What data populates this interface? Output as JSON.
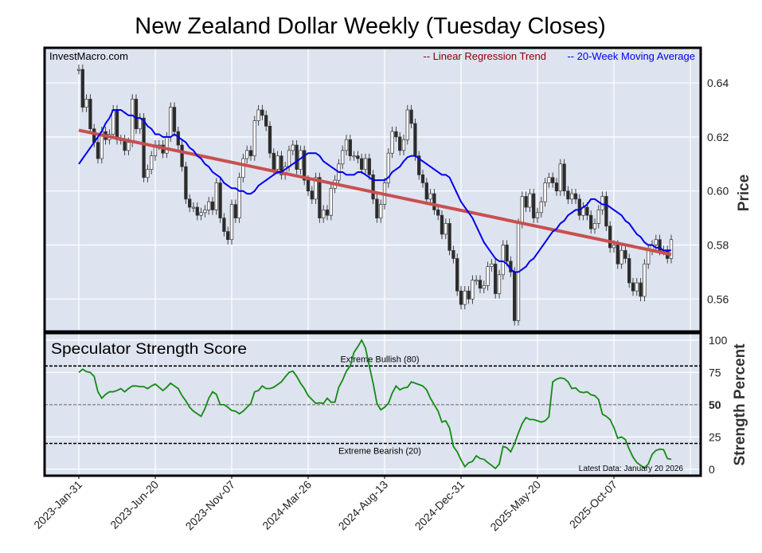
{
  "chart_data": [
    {
      "type": "candlestick",
      "title": "New Zealand Dollar Weekly (Tuesday Closes)",
      "watermark": "InvestMacro.com",
      "ylabel": "Price",
      "ylim": [
        0.548,
        0.653
      ],
      "yticks": [
        "0.56",
        "0.58",
        "0.60",
        "0.62",
        "0.64"
      ],
      "x_start": "2023-Jan-31",
      "x_step": "weekly (Tuesday)",
      "xticks": [
        "2023-Jan-31",
        "2023-Jun-20",
        "2023-Nov-07",
        "2024-Mar-26",
        "2024-Aug-13",
        "2024-Dec-31",
        "2025-May-20",
        "2025-Oct-07"
      ],
      "grid": true,
      "legend_position": "top-right",
      "legend": [
        {
          "label": "-- Linear Regression Trend",
          "color": "#8b0000"
        },
        {
          "label": "-- 20-Week Moving Average",
          "color": "#0000ff"
        }
      ],
      "colors": {
        "up": "#ffffff",
        "down": "#2b2b2b",
        "trend": "#c85050",
        "ma": "#0000ee",
        "background": "#dde3ef"
      },
      "close": [
        0.645,
        0.631,
        0.634,
        0.623,
        0.618,
        0.612,
        0.622,
        0.619,
        0.621,
        0.63,
        0.619,
        0.619,
        0.615,
        0.618,
        0.634,
        0.623,
        0.627,
        0.605,
        0.608,
        0.613,
        0.617,
        0.617,
        0.614,
        0.62,
        0.631,
        0.622,
        0.617,
        0.609,
        0.597,
        0.594,
        0.594,
        0.591,
        0.592,
        0.593,
        0.596,
        0.593,
        0.603,
        0.59,
        0.585,
        0.582,
        0.595,
        0.59,
        0.605,
        0.612,
        0.615,
        0.613,
        0.626,
        0.63,
        0.628,
        0.624,
        0.614,
        0.608,
        0.613,
        0.606,
        0.609,
        0.615,
        0.617,
        0.608,
        0.615,
        0.604,
        0.6,
        0.597,
        0.605,
        0.59,
        0.593,
        0.591,
        0.601,
        0.604,
        0.61,
        0.615,
        0.619,
        0.613,
        0.613,
        0.612,
        0.608,
        0.612,
        0.606,
        0.597,
        0.59,
        0.595,
        0.603,
        0.614,
        0.622,
        0.62,
        0.615,
        0.619,
        0.63,
        0.625,
        0.613,
        0.606,
        0.603,
        0.597,
        0.599,
        0.593,
        0.591,
        0.584,
        0.588,
        0.578,
        0.575,
        0.563,
        0.558,
        0.563,
        0.56,
        0.567,
        0.567,
        0.564,
        0.565,
        0.572,
        0.573,
        0.562,
        0.569,
        0.58,
        0.574,
        0.57,
        0.552,
        0.588,
        0.598,
        0.594,
        0.599,
        0.59,
        0.592,
        0.596,
        0.603,
        0.605,
        0.603,
        0.6,
        0.61,
        0.6,
        0.597,
        0.599,
        0.597,
        0.591,
        0.594,
        0.591,
        0.586,
        0.588,
        0.593,
        0.598,
        0.587,
        0.579,
        0.58,
        0.573,
        0.578,
        0.575,
        0.566,
        0.563,
        0.566,
        0.561,
        0.573,
        0.578,
        0.58,
        0.582,
        0.578,
        0.578,
        0.575,
        0.582
      ],
      "moving_average_20w": [
        0.61,
        0.612,
        0.614,
        0.616,
        0.618,
        0.62,
        0.622,
        0.625,
        0.627,
        0.63,
        0.63,
        0.63,
        0.629,
        0.628,
        0.628,
        0.627,
        0.627,
        0.626,
        0.624,
        0.623,
        0.621,
        0.621,
        0.62,
        0.62,
        0.62,
        0.621,
        0.62,
        0.619,
        0.618,
        0.616,
        0.615,
        0.613,
        0.612,
        0.61,
        0.609,
        0.607,
        0.606,
        0.605,
        0.603,
        0.602,
        0.601,
        0.601,
        0.6,
        0.6,
        0.599,
        0.599,
        0.6,
        0.602,
        0.603,
        0.604,
        0.605,
        0.606,
        0.607,
        0.607,
        0.608,
        0.609,
        0.61,
        0.611,
        0.612,
        0.613,
        0.614,
        0.614,
        0.614,
        0.613,
        0.611,
        0.61,
        0.609,
        0.608,
        0.607,
        0.607,
        0.606,
        0.606,
        0.606,
        0.607,
        0.607,
        0.606,
        0.605,
        0.604,
        0.604,
        0.604,
        0.604,
        0.605,
        0.607,
        0.608,
        0.609,
        0.611,
        0.6125,
        0.613,
        0.613,
        0.612,
        0.611,
        0.61,
        0.609,
        0.608,
        0.607,
        0.606,
        0.606,
        0.605,
        0.602,
        0.599,
        0.596,
        0.594,
        0.592,
        0.59,
        0.587,
        0.584,
        0.581,
        0.579,
        0.577,
        0.575,
        0.574,
        0.574,
        0.573,
        0.571,
        0.57,
        0.57,
        0.571,
        0.572,
        0.574,
        0.575,
        0.577,
        0.579,
        0.581,
        0.583,
        0.585,
        0.586,
        0.588,
        0.589,
        0.591,
        0.592,
        0.593,
        0.593,
        0.594,
        0.595,
        0.597,
        0.597,
        0.596,
        0.595,
        0.595,
        0.594,
        0.593,
        0.592,
        0.591,
        0.589,
        0.588,
        0.586,
        0.584,
        0.583,
        0.581,
        0.58,
        0.58,
        0.579,
        0.579,
        0.578,
        0.578,
        0.578
      ],
      "regression_trend": {
        "start": 0.6225,
        "end": 0.5765
      }
    },
    {
      "type": "line",
      "title": "Speculator Strength Score",
      "ylabel": "Strength Percent",
      "ylim": [
        -5,
        105.5
      ],
      "yticks": [
        "0",
        "25",
        "50",
        "75",
        "100"
      ],
      "grid": true,
      "color": "#138a13",
      "reference_lines": [
        {
          "value": 80,
          "label": "Extreme Bullish (80)",
          "color": "#000000"
        },
        {
          "value": 50,
          "label": "",
          "color": "#808080"
        },
        {
          "value": 20,
          "label": "Extreme Bearish (20)",
          "color": "#000000"
        }
      ],
      "annotation": "Latest Data: January 20 2026",
      "values": [
        75,
        77.5,
        75.6,
        75,
        72,
        60,
        55,
        58,
        60,
        60,
        61,
        62.5,
        60,
        62.5,
        64.5,
        64.5,
        64,
        64,
        62.5,
        64.5,
        66,
        63.5,
        61,
        63.5,
        66.7,
        64.5,
        62.5,
        57,
        53,
        48,
        45,
        43,
        41,
        47,
        55,
        60,
        58,
        50,
        50,
        48,
        45.5,
        45,
        43,
        45,
        48,
        51,
        60,
        61,
        64.5,
        62.5,
        62.5,
        63.5,
        65.6,
        67.7,
        71.5,
        75,
        76,
        72,
        66.7,
        62.5,
        57,
        54,
        51,
        51.5,
        51,
        55,
        52,
        52,
        63.5,
        69,
        76,
        80,
        90.6,
        95,
        100,
        94,
        80,
        66.7,
        51,
        46,
        48,
        51,
        59,
        64.5,
        61.5,
        63,
        63.5,
        67.7,
        66.7,
        65.6,
        64.5,
        61.5,
        55,
        50,
        45,
        36.5,
        37.5,
        32,
        17.7,
        13.5,
        7.3,
        2,
        5,
        6,
        10.4,
        8.3,
        7.7,
        5.2,
        3,
        0.6,
        4,
        17.7,
        16.7,
        13.5,
        19.8,
        28,
        35.4,
        40,
        38.5,
        38.5,
        37.5,
        36.5,
        37.5,
        40.6,
        67.7,
        69.8,
        70.8,
        70.2,
        67.7,
        62.5,
        63,
        60,
        59.4,
        60,
        57.7,
        57,
        54,
        42.7,
        41,
        38.5,
        32.3,
        24,
        25,
        23,
        15.6,
        9.4,
        5.2,
        3,
        1,
        4,
        11.5,
        14.6,
        15.6,
        15.2,
        8.3,
        7.7
      ]
    }
  ]
}
